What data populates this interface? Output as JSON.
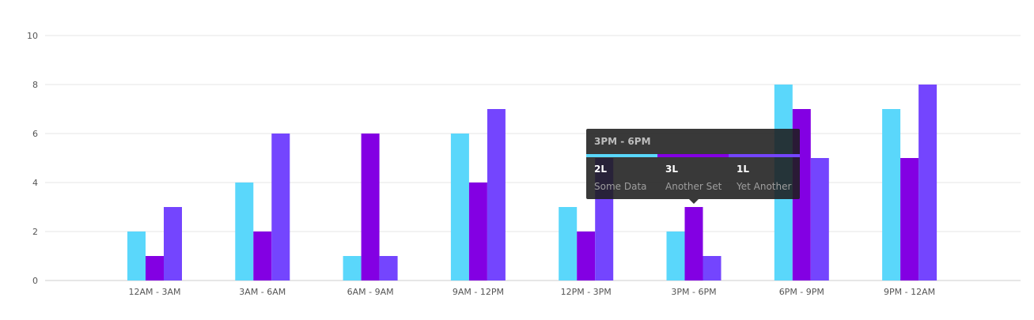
{
  "chart_data": {
    "type": "bar",
    "categories": [
      "12AM - 3AM",
      "3AM - 6AM",
      "6AM - 9AM",
      "9AM - 12PM",
      "12PM - 3PM",
      "3PM - 6PM",
      "6PM - 9PM",
      "9PM - 12AM"
    ],
    "series": [
      {
        "name": "Some Data",
        "color": "#5ad7fb",
        "values": [
          2,
          4,
          1,
          6,
          3,
          2,
          8,
          7
        ]
      },
      {
        "name": "Another Set",
        "color": "#8300e3",
        "values": [
          1,
          2,
          6,
          4,
          2,
          3,
          7,
          5
        ]
      },
      {
        "name": "Yet Another",
        "color": "#7445fe",
        "values": [
          3,
          6,
          1,
          7,
          5,
          1,
          5,
          8
        ]
      }
    ],
    "yticks": [
      "0",
      "2",
      "4",
      "6",
      "8",
      "10"
    ],
    "ylim": [
      0,
      10
    ],
    "grid": true,
    "title": "",
    "xlabel": "",
    "ylabel": ""
  },
  "tooltip": {
    "title": "3PM - 6PM",
    "items": [
      {
        "value": "2L",
        "name": "Some Data"
      },
      {
        "value": "3L",
        "name": "Another Set"
      },
      {
        "value": "1L",
        "name": "Yet Another"
      }
    ]
  }
}
